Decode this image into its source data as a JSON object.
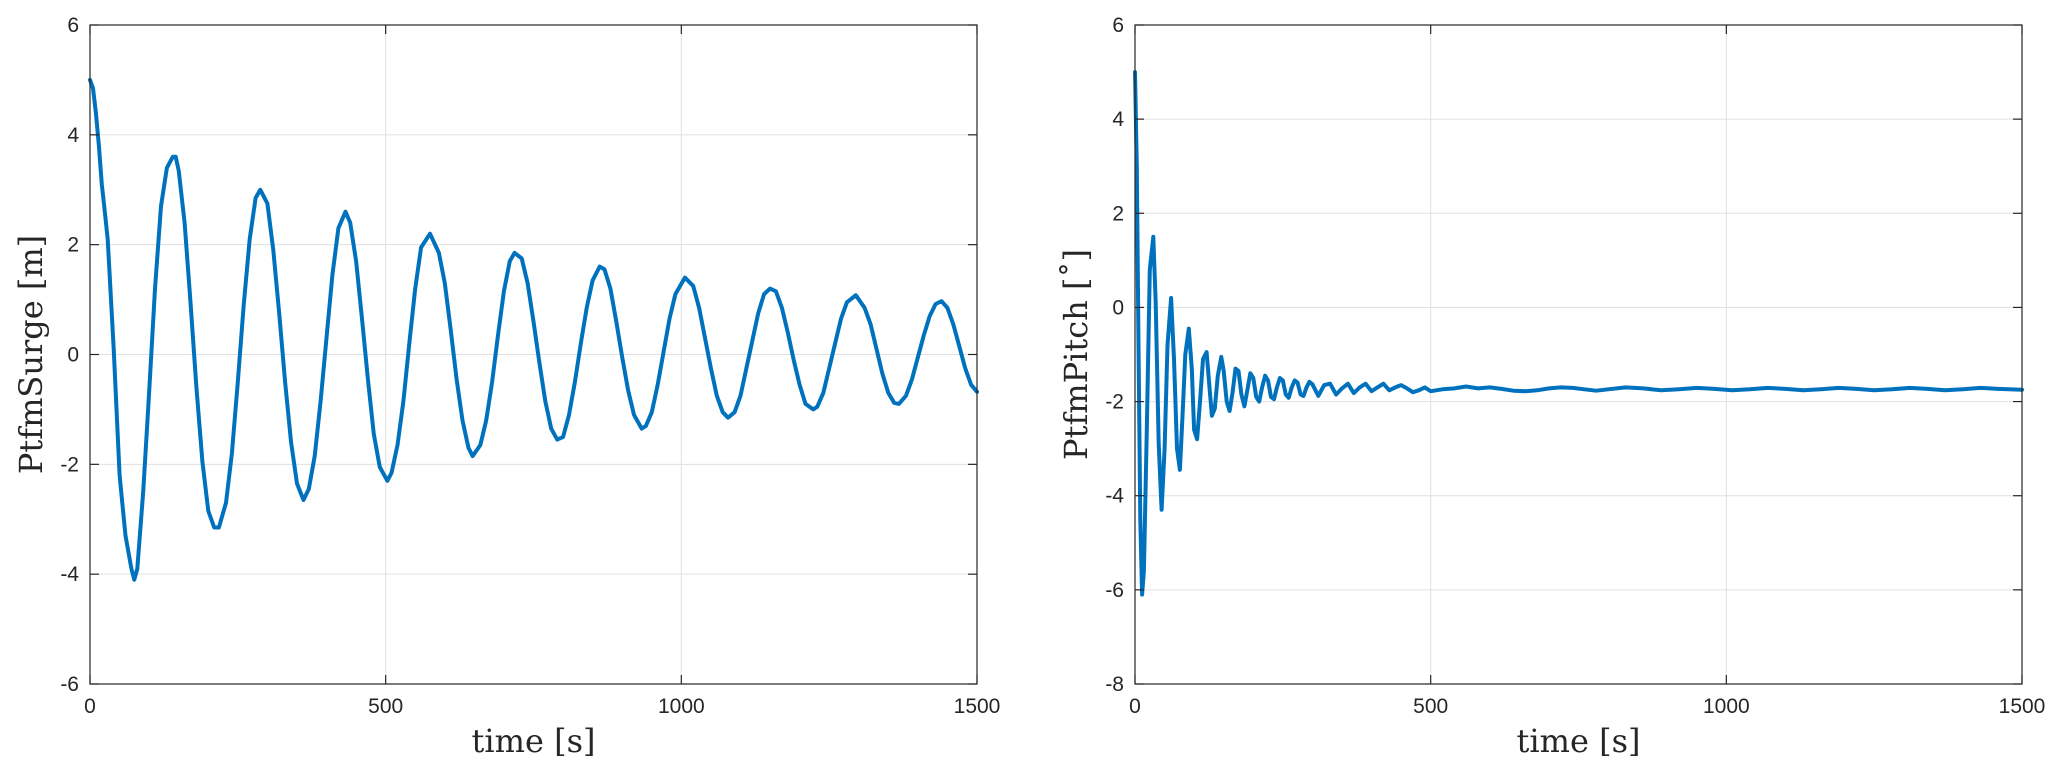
{
  "chart_data": [
    {
      "type": "line",
      "xlabel": "time [s]",
      "ylabel": "PtfmSurge [m]",
      "xlim": [
        0,
        1500
      ],
      "ylim": [
        -6,
        6
      ],
      "xticks": [
        0,
        500,
        1000,
        1500
      ],
      "yticks": [
        -6,
        -4,
        -2,
        0,
        2,
        4,
        6
      ],
      "grid": true,
      "color": "#0072BD",
      "series": [
        {
          "x": [
            0,
            5,
            10,
            15,
            20,
            25,
            30,
            40,
            50,
            60,
            70,
            75,
            80,
            90,
            100,
            110,
            120,
            130,
            140,
            145,
            150,
            160,
            170,
            180,
            190,
            200,
            210,
            218,
            230,
            240,
            250,
            260,
            270,
            280,
            288,
            300,
            310,
            320,
            330,
            340,
            350,
            361,
            370,
            380,
            390,
            400,
            410,
            420,
            432,
            440,
            450,
            460,
            470,
            480,
            490,
            503,
            510,
            520,
            530,
            540,
            550,
            560,
            575,
            590,
            600,
            610,
            620,
            630,
            640,
            647,
            660,
            670,
            680,
            690,
            700,
            710,
            718,
            730,
            740,
            750,
            760,
            770,
            780,
            790,
            800,
            810,
            820,
            830,
            840,
            850,
            862,
            870,
            880,
            890,
            900,
            910,
            920,
            933,
            940,
            950,
            960,
            970,
            980,
            990,
            1006,
            1020,
            1030,
            1040,
            1050,
            1060,
            1070,
            1079,
            1090,
            1100,
            1110,
            1120,
            1130,
            1140,
            1150,
            1160,
            1170,
            1180,
            1190,
            1200,
            1210,
            1223,
            1230,
            1240,
            1250,
            1260,
            1270,
            1280,
            1295,
            1310,
            1320,
            1330,
            1340,
            1350,
            1360,
            1368,
            1380,
            1390,
            1400,
            1410,
            1420,
            1430,
            1440,
            1450,
            1460,
            1470,
            1480,
            1490,
            1500
          ],
          "y": [
            5.0,
            4.85,
            4.4,
            3.8,
            3.1,
            2.6,
            2.1,
            0.1,
            -2.2,
            -3.3,
            -3.9,
            -4.1,
            -3.9,
            -2.5,
            -0.7,
            1.2,
            2.7,
            3.4,
            3.6,
            3.6,
            3.35,
            2.4,
            0.95,
            -0.6,
            -1.95,
            -2.85,
            -3.15,
            -3.15,
            -2.7,
            -1.8,
            -0.5,
            0.9,
            2.1,
            2.85,
            3.0,
            2.75,
            1.9,
            0.75,
            -0.5,
            -1.6,
            -2.35,
            -2.65,
            -2.45,
            -1.85,
            -0.85,
            0.3,
            1.45,
            2.3,
            2.6,
            2.4,
            1.7,
            0.65,
            -0.45,
            -1.45,
            -2.05,
            -2.3,
            -2.15,
            -1.65,
            -0.85,
            0.2,
            1.2,
            1.95,
            2.2,
            1.85,
            1.3,
            0.45,
            -0.45,
            -1.2,
            -1.7,
            -1.85,
            -1.65,
            -1.2,
            -0.5,
            0.35,
            1.15,
            1.7,
            1.85,
            1.75,
            1.3,
            0.6,
            -0.15,
            -0.85,
            -1.35,
            -1.55,
            -1.5,
            -1.1,
            -0.5,
            0.2,
            0.85,
            1.35,
            1.6,
            1.55,
            1.2,
            0.6,
            -0.05,
            -0.65,
            -1.1,
            -1.35,
            -1.3,
            -1.05,
            -0.55,
            0.05,
            0.65,
            1.1,
            1.4,
            1.25,
            0.85,
            0.3,
            -0.25,
            -0.75,
            -1.05,
            -1.15,
            -1.05,
            -0.75,
            -0.25,
            0.25,
            0.75,
            1.1,
            1.2,
            1.15,
            0.85,
            0.4,
            -0.1,
            -0.55,
            -0.9,
            -1.0,
            -0.95,
            -0.7,
            -0.25,
            0.2,
            0.65,
            0.95,
            1.08,
            0.85,
            0.55,
            0.1,
            -0.35,
            -0.7,
            -0.88,
            -0.9,
            -0.75,
            -0.45,
            -0.05,
            0.35,
            0.7,
            0.92,
            0.97,
            0.85,
            0.55,
            0.15,
            -0.25,
            -0.55,
            -0.68
          ]
        }
      ]
    },
    {
      "type": "line",
      "xlabel": "time [s]",
      "ylabel": "PtfmPitch [˚]",
      "xlim": [
        0,
        1500
      ],
      "ylim": [
        -8,
        6
      ],
      "xticks": [
        0,
        500,
        1000,
        1500
      ],
      "yticks": [
        -8,
        -6,
        -4,
        -2,
        0,
        2,
        4,
        6
      ],
      "grid": true,
      "color": "#0072BD",
      "series": [
        {
          "x": [
            0,
            3,
            6,
            9,
            12,
            15,
            20,
            25,
            31,
            35,
            40,
            45,
            50,
            55,
            61,
            66,
            71,
            76,
            80,
            85,
            91,
            96,
            100,
            105,
            110,
            115,
            121,
            126,
            130,
            135,
            140,
            146,
            150,
            155,
            160,
            165,
            170,
            175,
            180,
            185,
            190,
            195,
            200,
            205,
            210,
            215,
            220,
            225,
            230,
            235,
            240,
            245,
            250,
            255,
            260,
            265,
            270,
            275,
            280,
            285,
            290,
            295,
            300,
            310,
            320,
            330,
            340,
            350,
            360,
            370,
            380,
            390,
            400,
            410,
            420,
            430,
            440,
            450,
            460,
            470,
            480,
            490,
            500,
            520,
            540,
            560,
            580,
            600,
            620,
            640,
            660,
            680,
            700,
            720,
            740,
            760,
            780,
            800,
            830,
            860,
            890,
            920,
            950,
            980,
            1010,
            1040,
            1070,
            1100,
            1130,
            1160,
            1190,
            1220,
            1250,
            1280,
            1310,
            1340,
            1370,
            1400,
            1430,
            1460,
            1500
          ],
          "y": [
            5.0,
            3.0,
            -0.8,
            -4.5,
            -6.1,
            -5.6,
            -2.6,
            0.8,
            1.5,
            0.1,
            -2.9,
            -4.3,
            -3.0,
            -0.8,
            0.2,
            -1.1,
            -3.0,
            -3.45,
            -2.4,
            -1.0,
            -0.45,
            -1.3,
            -2.6,
            -2.8,
            -2.0,
            -1.1,
            -0.95,
            -1.7,
            -2.3,
            -2.15,
            -1.45,
            -1.05,
            -1.35,
            -2.0,
            -2.2,
            -1.8,
            -1.3,
            -1.35,
            -1.85,
            -2.1,
            -1.75,
            -1.4,
            -1.5,
            -1.9,
            -2.0,
            -1.7,
            -1.45,
            -1.55,
            -1.9,
            -1.95,
            -1.7,
            -1.5,
            -1.55,
            -1.85,
            -1.92,
            -1.7,
            -1.55,
            -1.6,
            -1.85,
            -1.88,
            -1.7,
            -1.58,
            -1.63,
            -1.88,
            -1.65,
            -1.62,
            -1.85,
            -1.72,
            -1.62,
            -1.82,
            -1.7,
            -1.62,
            -1.78,
            -1.7,
            -1.62,
            -1.76,
            -1.7,
            -1.65,
            -1.72,
            -1.8,
            -1.76,
            -1.7,
            -1.78,
            -1.74,
            -1.72,
            -1.68,
            -1.72,
            -1.7,
            -1.73,
            -1.77,
            -1.78,
            -1.76,
            -1.72,
            -1.7,
            -1.71,
            -1.74,
            -1.77,
            -1.74,
            -1.7,
            -1.72,
            -1.76,
            -1.74,
            -1.71,
            -1.73,
            -1.76,
            -1.74,
            -1.71,
            -1.73,
            -1.76,
            -1.74,
            -1.71,
            -1.73,
            -1.76,
            -1.74,
            -1.71,
            -1.73,
            -1.76,
            -1.74,
            -1.71,
            -1.73,
            -1.75
          ]
        }
      ]
    }
  ]
}
